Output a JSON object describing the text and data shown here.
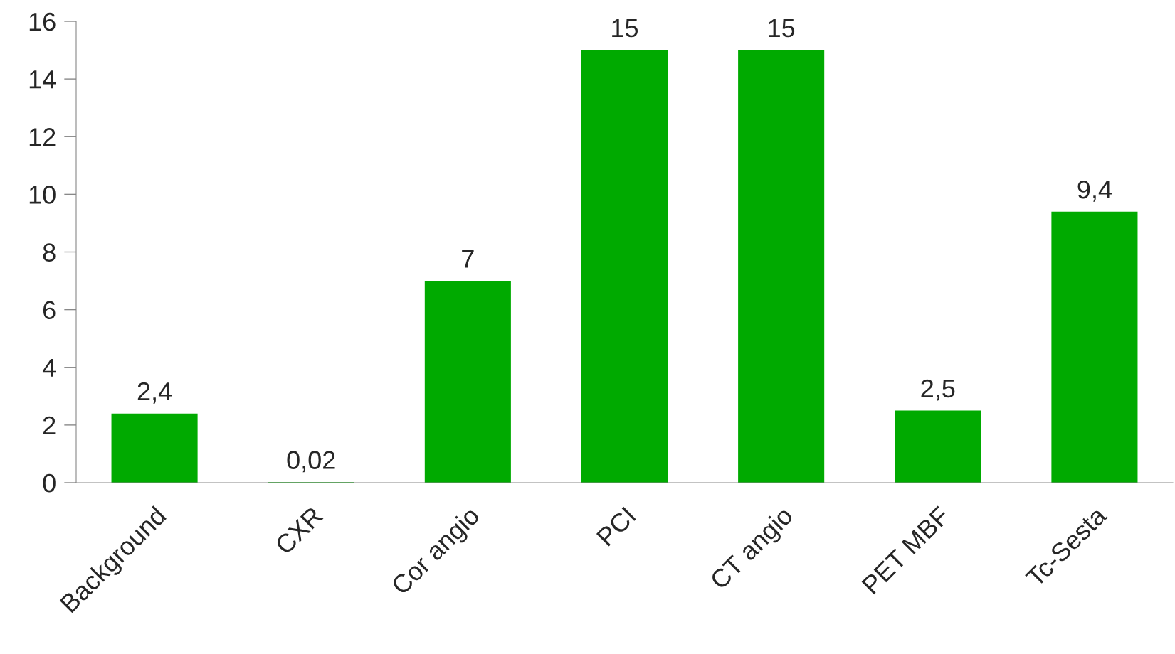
{
  "chart_data": {
    "type": "bar",
    "categories": [
      "Background",
      "CXR",
      "Cor angio",
      "PCI",
      "CT angio",
      "PET MBF",
      "Tc-Sesta"
    ],
    "values": [
      2.4,
      0.02,
      7,
      15,
      15,
      2.5,
      9.4
    ],
    "value_labels": [
      "2,4",
      "0,02",
      "7",
      "15",
      "15",
      "2,5",
      "9,4"
    ],
    "color": "#00aa00",
    "ylim": [
      0,
      16
    ],
    "yticks": [
      0,
      2,
      4,
      6,
      8,
      10,
      12,
      14,
      16
    ],
    "grid": false,
    "legend": false
  }
}
